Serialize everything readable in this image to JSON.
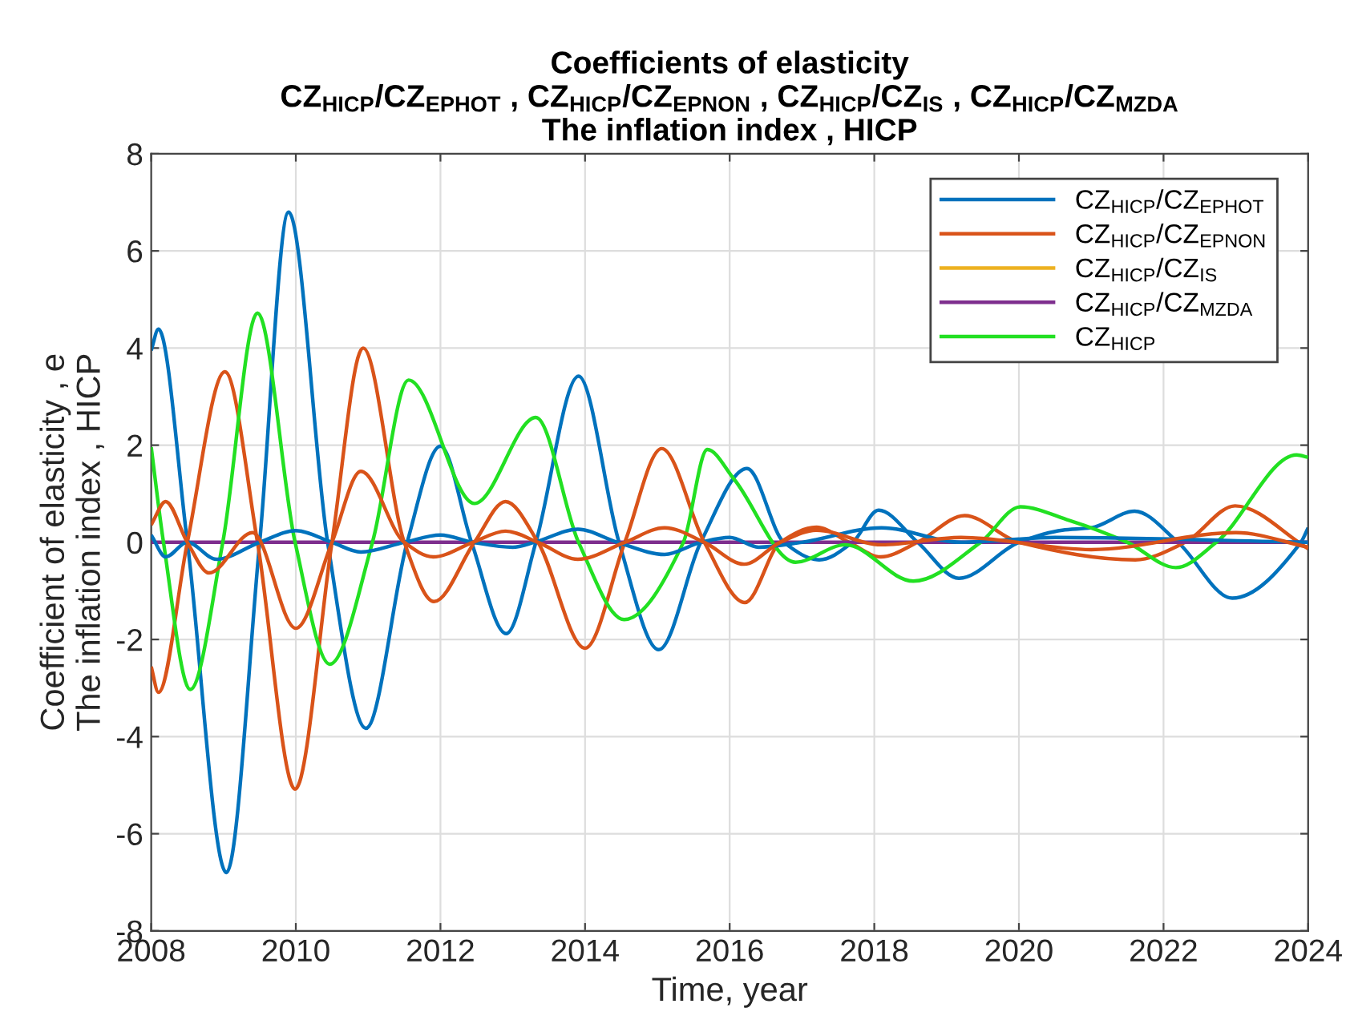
{
  "chart_data": {
    "type": "line",
    "title": "Coefficients of elasticity\nCZ$_{HICP}$/CZ$_{EPHOT}$ , CZ$_{HICP}$/CZ$_{EPNON}$ , CZ$_{HICP}$/CZ$_{IS}$ , CZ$_{HICP}$/CZ$_{MZDA}$\nThe inflation index , HICP",
    "xlabel": "Time, year",
    "ylabel": "Coefficient of elasticity , e\nThe inflation index , HICP",
    "xlim": [
      2008,
      2024
    ],
    "xticks": [
      2008,
      2010,
      2012,
      2014,
      2016,
      2018,
      2020,
      2022,
      2024
    ],
    "ylim": [
      -8,
      8
    ],
    "yticks": [
      -8,
      -6,
      -4,
      -2,
      0,
      2,
      4,
      6,
      8
    ],
    "grid": true,
    "legend": "top right",
    "marker": "none",
    "line_style": "solid",
    "series": [
      {
        "name": "CZ$_{HICP}$/CZ$_{EPHOT}$",
        "color": "#0072bd",
        "x": [
          2008.0,
          2008.1,
          2008.5,
          2009.04,
          2009.5,
          2009.9,
          2010.44,
          2010.97,
          2011.54,
          2012.0,
          2012.43,
          2012.91,
          2013.32,
          2013.91,
          2014.47,
          2015.02,
          2015.6,
          2016.24,
          2016.75,
          2017.24,
          2017.7,
          2018.06,
          2018.6,
          2019.17,
          2020.0,
          2020.6,
          2021.0,
          2021.6,
          2022.2,
          2022.95,
          2023.9,
          2024.0
        ],
        "values": [
          3.95,
          4.39,
          0,
          -6.8,
          0,
          6.8,
          0,
          -3.83,
          0,
          1.98,
          0,
          -1.88,
          0,
          3.42,
          0,
          -2.21,
          0,
          1.52,
          0,
          -0.36,
          0,
          0.66,
          0,
          -0.74,
          0,
          0.25,
          0.3,
          0.64,
          0,
          -1.15,
          0,
          0.3
        ]
      },
      {
        "name": "CZ$_{HICP}$/CZ$_{EPNON}$",
        "color": "#d95319",
        "x": [
          2008.0,
          2008.1,
          2008.5,
          2009.02,
          2009.47,
          2009.99,
          2010.5,
          2010.93,
          2011.5,
          2011.91,
          2012.47,
          2012.9,
          2013.35,
          2014.0,
          2014.55,
          2015.06,
          2015.65,
          2016.21,
          2016.7,
          2017.2,
          2017.65,
          2018.09,
          2018.6,
          2019.25,
          2020.0,
          2021.61,
          2022.3,
          2022.99,
          2024.0
        ],
        "values": [
          -2.56,
          -3.09,
          0,
          3.51,
          0,
          -5.08,
          0,
          4.0,
          0,
          -1.22,
          0,
          0.84,
          0,
          -2.18,
          0,
          1.93,
          0,
          -1.24,
          0,
          0.31,
          0,
          -0.3,
          0,
          0.55,
          0,
          -0.36,
          0,
          0.75,
          -0.13
        ]
      },
      {
        "name": "CZ$_{HICP}$/CZ$_{IS}$",
        "color": "#edb120"
      },
      {
        "name": "CZ$_{HICP}$/CZ$_{MZDA}$",
        "color": "#7e2f8e",
        "x": [
          2008.0,
          2016.0,
          2024.0
        ],
        "values": [
          0,
          0,
          0
        ]
      },
      {
        "name": "CZ$_{HICP}$",
        "color": "#22e022",
        "x": [
          2008.0,
          2008.17,
          2008.54,
          2008.99,
          2009.47,
          2009.99,
          2010.47,
          2011.06,
          2011.56,
          2012.47,
          2013.32,
          2013.91,
          2014.54,
          2015.36,
          2015.69,
          2016.06,
          2016.91,
          2017.6,
          2018.54,
          2019.47,
          2020.02,
          2020.7,
          2021.5,
          2022.17,
          2022.73,
          2023.84,
          2024.0
        ],
        "values": [
          1.96,
          0,
          -3.03,
          0,
          4.72,
          0,
          -2.51,
          0,
          3.34,
          0.8,
          2.57,
          0,
          -1.59,
          0,
          1.91,
          1.3,
          -0.41,
          -0.05,
          -0.8,
          0,
          0.73,
          0.45,
          0,
          -0.52,
          0,
          1.8,
          1.75
        ]
      },
      {
        "color": "#0072bd",
        "x": [
          2008.0,
          2008.2,
          2008.5,
          2008.9,
          2009.5,
          2010.0,
          2010.5,
          2010.9,
          2011.5,
          2012.0,
          2012.45,
          2013.0,
          2013.3,
          2013.9,
          2014.45,
          2015.1,
          2015.6,
          2016.0,
          2016.4,
          2017.0,
          2018.1,
          2019.2,
          2020.5,
          2024.0
        ],
        "values": [
          0.15,
          -0.3,
          0,
          -0.35,
          0,
          0.24,
          0,
          -0.2,
          0,
          0.15,
          0,
          -0.1,
          0,
          0.27,
          0,
          -0.25,
          0,
          0.1,
          -0.1,
          0,
          0.3,
          0,
          0.1,
          0
        ]
      },
      {
        "color": "#d95319",
        "x": [
          2008.0,
          2008.2,
          2008.5,
          2008.8,
          2009.4,
          2010.0,
          2010.5,
          2010.9,
          2011.5,
          2011.9,
          2012.45,
          2012.9,
          2013.35,
          2013.9,
          2014.55,
          2015.1,
          2015.65,
          2016.2,
          2016.7,
          2017.2,
          2018.1,
          2019.2,
          2021.0,
          2023.0,
          2024.0
        ],
        "values": [
          0.36,
          0.84,
          0,
          -0.63,
          0.2,
          -1.77,
          0,
          1.46,
          0,
          -0.3,
          0,
          0.23,
          0,
          -0.35,
          0,
          0.3,
          0,
          -0.45,
          0,
          0.25,
          -0.05,
          0.1,
          -0.15,
          0.2,
          -0.1
        ]
      }
    ]
  }
}
